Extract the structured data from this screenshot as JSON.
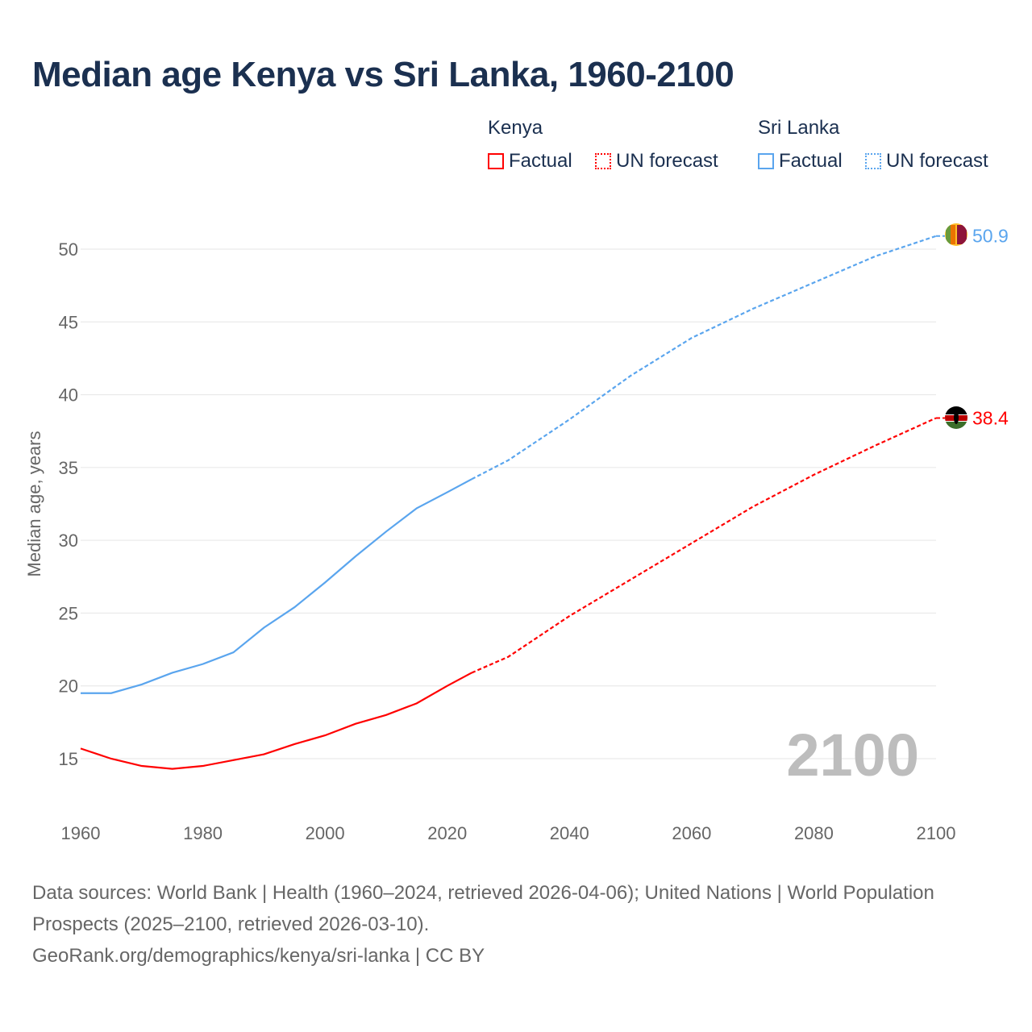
{
  "title": "Median age Kenya vs Sri Lanka, 1960-2100",
  "legend": {
    "kenya": {
      "country": "Kenya",
      "factual": "Factual",
      "forecast": "UN forecast"
    },
    "srilanka": {
      "country": "Sri Lanka",
      "factual": "Factual",
      "forecast": "UN forecast"
    }
  },
  "colors": {
    "kenya": "#ff0000",
    "srilanka": "#5aa5ee",
    "year_watermark": "#bdbdbd"
  },
  "source": {
    "line1": "Data sources: World Bank | Health (1960–2024, retrieved 2026-04-06); United Nations | World Population Prospects (2025–2100, retrieved 2026-03-10).",
    "line2": "GeoRank.org/demographics/kenya/sri-lanka | CC BY"
  },
  "chart_data": {
    "type": "line",
    "title": "Median age Kenya vs Sri Lanka, 1960-2100",
    "xlabel": "",
    "ylabel": "Median age, years",
    "xlim": [
      1960,
      2100
    ],
    "ylim": [
      12,
      52
    ],
    "x_ticks": [
      "1960",
      "1980",
      "2000",
      "2020",
      "2040",
      "2060",
      "2080",
      "2100"
    ],
    "y_ticks": [
      "15",
      "20",
      "25",
      "30",
      "35",
      "40",
      "45",
      "50"
    ],
    "grid": true,
    "year_label": "2100",
    "forecast_start": 2024,
    "x": [
      1960,
      1965,
      1970,
      1975,
      1980,
      1985,
      1990,
      1995,
      2000,
      2005,
      2010,
      2015,
      2020,
      2024,
      2030,
      2040,
      2050,
      2060,
      2070,
      2080,
      2090,
      2100
    ],
    "series": [
      {
        "name": "Sri Lanka",
        "end_label": "50.9",
        "values": [
          19.5,
          19.5,
          20.1,
          20.9,
          21.5,
          22.3,
          24.0,
          25.4,
          27.1,
          28.9,
          30.6,
          32.2,
          33.3,
          34.2,
          35.5,
          38.3,
          41.3,
          43.9,
          45.9,
          47.7,
          49.5,
          50.9
        ]
      },
      {
        "name": "Kenya",
        "end_label": "38.4",
        "values": [
          15.7,
          15.0,
          14.5,
          14.3,
          14.5,
          14.9,
          15.3,
          16.0,
          16.6,
          17.4,
          18.0,
          18.8,
          20.0,
          20.9,
          22.0,
          24.8,
          27.3,
          29.8,
          32.3,
          34.5,
          36.5,
          38.4
        ]
      }
    ]
  }
}
